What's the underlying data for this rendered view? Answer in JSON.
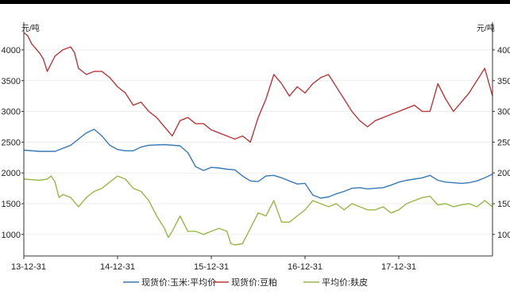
{
  "colors": {
    "top_bar": "#000000",
    "axis": "#333333",
    "grid": "#eeeeee",
    "corn": "#3a78b5",
    "soymeal": "#b5393c",
    "bran": "#99b64a"
  },
  "chart_data": {
    "type": "line",
    "y_unit_left": "元/吨",
    "y_unit_right": "元/吨",
    "ylim": [
      650,
      4450
    ],
    "xlim": [
      0,
      60
    ],
    "y_ticks": [
      4000,
      3500,
      3000,
      2500,
      2000,
      1500,
      1000
    ],
    "y_tick_labels_left": [
      "4000",
      "3500",
      "3000",
      "2500",
      "2000",
      "1500",
      "1000"
    ],
    "y_tick_labels_right": [
      "4000",
      "3500",
      "3000",
      "2500",
      "2000",
      "1500",
      "1000"
    ],
    "x_ticks": [
      0,
      12,
      24,
      36,
      48
    ],
    "x_tick_labels": [
      "13-12-31",
      "14-12-31",
      "15-12-31",
      "16-12-31",
      "17-12-31"
    ],
    "grid": true,
    "legend_position": "bottom",
    "series": [
      {
        "name": "现货价:玉米:平均价",
        "color_key": "corn",
        "x": [
          0,
          2,
          4,
          6,
          7,
          8,
          9,
          10,
          11,
          12,
          13,
          14,
          15,
          16,
          18,
          20,
          21,
          22,
          23,
          24,
          25,
          26,
          27,
          28,
          29,
          30,
          31,
          32,
          33,
          34,
          35,
          36,
          37,
          38,
          39,
          40,
          41,
          42,
          43,
          44,
          45,
          46,
          47,
          48,
          49,
          50,
          51,
          52,
          53,
          54,
          55,
          56,
          57,
          58,
          59,
          60
        ],
        "y": [
          2370,
          2350,
          2350,
          2450,
          2550,
          2650,
          2710,
          2600,
          2450,
          2380,
          2360,
          2360,
          2420,
          2450,
          2460,
          2440,
          2330,
          2100,
          2040,
          2090,
          2080,
          2060,
          2050,
          1950,
          1870,
          1860,
          1950,
          1960,
          1920,
          1870,
          1820,
          1830,
          1640,
          1590,
          1610,
          1660,
          1700,
          1750,
          1760,
          1740,
          1750,
          1760,
          1800,
          1850,
          1880,
          1900,
          1920,
          1960,
          1880,
          1850,
          1840,
          1830,
          1840,
          1870,
          1920,
          1980
        ]
      },
      {
        "name": "现货价:豆粕",
        "color_key": "soymeal",
        "x": [
          0,
          0.5,
          1,
          2,
          2.5,
          3,
          4,
          5,
          6,
          6.5,
          7,
          8,
          9,
          10,
          11,
          12,
          13,
          14,
          15,
          16,
          17,
          18,
          19,
          20,
          21,
          22,
          23,
          24,
          25,
          26,
          27,
          28,
          28.5,
          29,
          30,
          31,
          32,
          33,
          34,
          35,
          36,
          37,
          38,
          39,
          40,
          41,
          42,
          43,
          44,
          45,
          46,
          47,
          48,
          49,
          50,
          51,
          52,
          53,
          54,
          55,
          56,
          57,
          58,
          59,
          60
        ],
        "y": [
          4280,
          4230,
          4100,
          3950,
          3850,
          3650,
          3900,
          4000,
          4050,
          3950,
          3700,
          3600,
          3650,
          3650,
          3550,
          3400,
          3300,
          3100,
          3150,
          3000,
          2900,
          2750,
          2600,
          2850,
          2900,
          2800,
          2800,
          2700,
          2650,
          2600,
          2550,
          2600,
          2550,
          2500,
          2900,
          3200,
          3600,
          3450,
          3250,
          3400,
          3300,
          3450,
          3550,
          3600,
          3400,
          3200,
          3000,
          2850,
          2750,
          2850,
          2900,
          2950,
          3000,
          3050,
          3100,
          3000,
          3000,
          3450,
          3200,
          3000,
          3150,
          3300,
          3500,
          3700,
          3250
        ]
      },
      {
        "name": "平均价:麸皮",
        "color_key": "bran",
        "x": [
          0,
          1,
          2,
          3,
          3.5,
          4,
          4.5,
          5,
          6,
          7,
          8,
          9,
          10,
          11,
          12,
          13,
          14,
          15,
          16,
          17,
          18,
          18.5,
          19,
          20,
          21,
          22,
          23,
          24,
          25,
          26,
          26.5,
          27,
          28,
          29,
          30,
          31,
          32,
          33,
          34,
          35,
          36,
          37,
          38,
          39,
          40,
          41,
          42,
          43,
          44,
          45,
          46,
          47,
          48,
          49,
          50,
          51,
          52,
          53,
          54,
          55,
          56,
          57,
          58,
          59,
          60
        ],
        "y": [
          1900,
          1890,
          1880,
          1900,
          1950,
          1850,
          1600,
          1650,
          1600,
          1450,
          1600,
          1700,
          1750,
          1850,
          1950,
          1900,
          1750,
          1700,
          1550,
          1300,
          1100,
          950,
          1050,
          1300,
          1050,
          1050,
          1000,
          1050,
          1100,
          1050,
          850,
          830,
          850,
          1100,
          1350,
          1300,
          1550,
          1200,
          1200,
          1300,
          1400,
          1550,
          1500,
          1450,
          1500,
          1400,
          1500,
          1450,
          1400,
          1400,
          1450,
          1350,
          1400,
          1500,
          1550,
          1600,
          1620,
          1480,
          1500,
          1450,
          1480,
          1500,
          1450,
          1550,
          1450
        ]
      }
    ]
  }
}
